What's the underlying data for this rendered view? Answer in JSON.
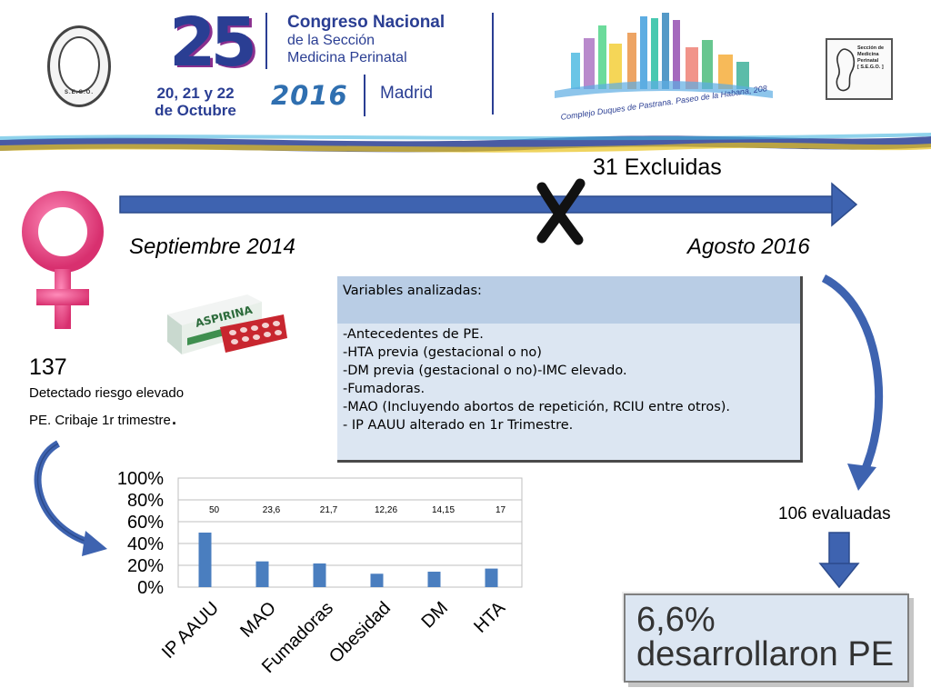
{
  "header": {
    "event_number": "25",
    "congress_title": "Congreso Nacional",
    "congress_line2": "de la Sección",
    "congress_line3": "Medicina Perinatal",
    "dates_line1": "20, 21 y 22",
    "dates_line2": "de Octubre",
    "year": "2016",
    "city": "Madrid",
    "venue": "Complejo Duques de Pastrana. Paseo de la Habana, 208",
    "sego_seal": "S.E.G.O.",
    "section_logo_lines": [
      "Sección de",
      "Medicina",
      "Perinatal",
      "[ S.E.G.O. ]"
    ]
  },
  "timeline": {
    "start": "Septiembre 2014",
    "end": "Agosto 2016",
    "excluded": "31 Excluidas"
  },
  "cohort": {
    "count": "137",
    "desc_line1": "Detectado riesgo elevado",
    "desc_line2": "PE. Cribaje 1r trimestre",
    "desc_dot": "."
  },
  "variables": {
    "header": "Variables analizadas:",
    "items": [
      "-Antecedentes de PE.",
      "-HTA previa (gestacional o no)",
      "-DM previa (gestacional o no)-IMC elevado.",
      "-Fumadoras.",
      "-MAO (Incluyendo abortos de repetición, RCIU entre otros).",
      "- IP AAUU alterado en 1r Trimestre."
    ]
  },
  "evaluated": "106 evaluadas",
  "result": {
    "line1": "6,6%",
    "line2": "desarrollaron PE"
  },
  "icons": {
    "female_symbol": "female-symbol-icon",
    "aspirin_box": "aspirin-box-icon",
    "cross_mark": "cross-mark-icon"
  },
  "colors": {
    "arrow_blue": "#3e63b0",
    "female_pink": "#ec4d8c",
    "bar_blue": "#4a7ebf",
    "box_fill": "#dce6f2"
  },
  "chart_data": {
    "type": "bar",
    "categories": [
      "IP AAUU",
      "MAO",
      "Fumadoras",
      "Obesidad",
      "DM",
      "HTA"
    ],
    "values": [
      50,
      23.6,
      21.7,
      12.26,
      14.15,
      17
    ],
    "data_labels": [
      "50",
      "23,6",
      "21,7",
      "12,26",
      "14,15",
      "17"
    ],
    "y_ticks": [
      "0%",
      "20%",
      "40%",
      "60%",
      "80%",
      "100%"
    ],
    "ylim": [
      0,
      100
    ],
    "grid": true,
    "legend": "none"
  }
}
